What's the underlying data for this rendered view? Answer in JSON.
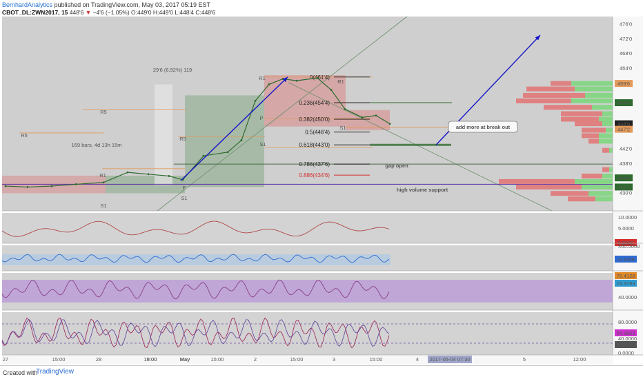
{
  "header": {
    "author": "BernhardAnalytics",
    "published": "published on TradingView.com, May 03, 2017 05:19 EST",
    "symbol": "CBOT_DL:ZWN2017, 15",
    "last": "448'6",
    "change": "−4'6 (−1.05%)",
    "open": "O:449'0",
    "high": "H:449'0",
    "low": "L:448'4",
    "close": "C:448'6"
  },
  "footer": {
    "created_with": "Created with",
    "brand": "TradingView"
  },
  "colors": {
    "panel_bg": "#cfcfcf",
    "candle": "#2e6b2e",
    "bull_zone": "#7fa57f",
    "bear_zone": "#d98c8c",
    "pivot": "#e39a5a",
    "blue_arrow": "#1616c8",
    "support": "#5a2ea6",
    "vol_green": "#7ed67e",
    "vol_red": "#e07878",
    "rsi_fill": "#b793d9",
    "cci_fill": "#a8c8e8"
  },
  "chart_data": {
    "type": "line",
    "title": "",
    "ylabel": "",
    "ylim": [
      425,
      478
    ],
    "price_ticks": [
      "476'0",
      "472'0",
      "468'0",
      "464'0",
      "459'6",
      "454'4",
      "448'6",
      "447'2",
      "442'0",
      "438'0",
      "434'0",
      "430'0",
      "431'4"
    ],
    "price_tick_values": [
      476,
      472,
      468,
      464,
      459.75,
      454.5,
      448.75,
      447.25,
      442,
      438,
      434,
      430,
      431.5
    ],
    "x_ticks": [
      "27",
      "15:00",
      "28",
      "15:00",
      "18:00",
      "May",
      "15:00",
      "2",
      "15:00",
      "3",
      "15:00",
      "4",
      "2017-05-04 07:30",
      "5",
      "12:00"
    ],
    "series": [
      {
        "x": [
          "Apr 27 00:00",
          "Apr 27 06:00",
          "Apr 27 12:00",
          "Apr 27 18:00",
          "Apr 28 00:00",
          "Apr 28 06:00",
          "Apr 28 12:00",
          "Apr 28 18:00",
          "May 1 00:00",
          "May 1 06:00",
          "May 1 12:00",
          "May 1 18:00",
          "May 2 00:00",
          "May 2 03:00",
          "May 2 06:00",
          "May 2 09:00",
          "May 2 12:00",
          "May 2 15:00",
          "May 2 18:00",
          "May 3 00:00",
          "May 3 03:00",
          "May 3 06:00"
        ],
        "values": [
          431.75,
          431.5,
          431.75,
          432.25,
          432.75,
          435.5,
          435.0,
          434.5,
          433.5,
          440.0,
          441.0,
          444.25,
          455.0,
          459.5,
          461.0,
          460.5,
          461.25,
          458.0,
          452.75,
          450.5,
          451.0,
          448.75
        ]
      }
    ],
    "fibonacci": [
      {
        "level": "0(461'4)",
        "value": 461.5
      },
      {
        "level": "0.236(454'4)",
        "value": 454.5
      },
      {
        "level": "0.382(450'0)",
        "value": 450.0
      },
      {
        "level": "0.5(446'4)",
        "value": 446.5
      },
      {
        "level": "0.618(443'0)",
        "value": 443.0
      },
      {
        "level": "0.786(437'6)",
        "value": 437.75
      },
      {
        "level": "0.886(434'6)",
        "value": 434.75
      }
    ],
    "annotations": {
      "measure": "29'6 (6.92%) 119",
      "bars": "169 bars, 4d 13h 15m",
      "breakout": "add more at break out",
      "gap": "gap open",
      "support": "high volume support",
      "pivot_labels": [
        "R1",
        "R5",
        "R5",
        "R1",
        "P",
        "S1",
        "S1",
        "R1",
        "P",
        "S1",
        "R5",
        "S1"
      ]
    },
    "indicators": {
      "volatility": {
        "ticks": [
          "10.0000",
          "5.0000",
          "0.5000"
        ],
        "last": "0.5000"
      },
      "cci": {
        "ticks": [
          "400.0000",
          "-3.1609"
        ],
        "last": "-3.1609"
      },
      "rsi": {
        "ticks": [
          "76.4128",
          "74.3793",
          "40.0000"
        ],
        "last": "76.4128"
      },
      "stoch": {
        "ticks": [
          "80.0000",
          "54.3863",
          "40.0000",
          "23.3476",
          "0.0000"
        ],
        "last": "54.3863"
      }
    }
  }
}
